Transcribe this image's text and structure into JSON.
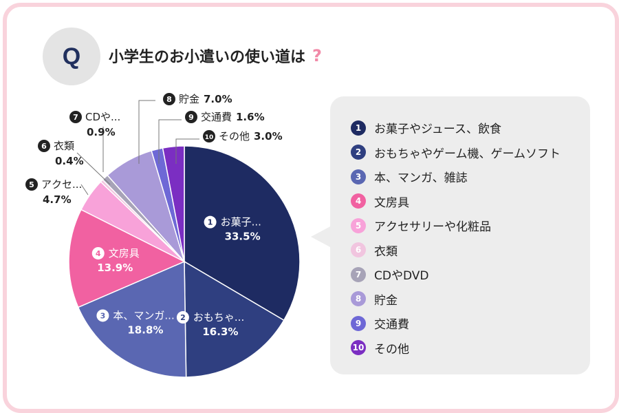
{
  "header": {
    "badge": "Q",
    "title": "小学生のお小遣いの使い道は",
    "question_mark": "?"
  },
  "chart_data": {
    "type": "pie",
    "title": "小学生のお小遣いの使い道は",
    "slices": [
      {
        "num": "1",
        "label": "お菓子やジュース、飲食",
        "short": "お菓子...",
        "value": 33.5,
        "display": "33.5%",
        "color": "#1e2b62",
        "text_color": "#ffffff"
      },
      {
        "num": "2",
        "label": "おもちゃやゲーム機、ゲームソフト",
        "short": "おもちゃ...",
        "value": 16.3,
        "display": "16.3%",
        "color": "#2f3f80",
        "text_color": "#ffffff"
      },
      {
        "num": "3",
        "label": "本、マンガ、雑誌",
        "short": "本、マンガ...",
        "value": 18.8,
        "display": "18.8%",
        "color": "#5a67b2",
        "text_color": "#ffffff"
      },
      {
        "num": "4",
        "label": "文房具",
        "short": "文房具",
        "value": 13.9,
        "display": "13.9%",
        "color": "#f161a1",
        "text_color": "#ffffff"
      },
      {
        "num": "5",
        "label": "アクセサリーや化粧品",
        "short": "アクセ...",
        "value": 4.7,
        "display": "4.7%",
        "color": "#f8a2d9",
        "text_color": "#222222"
      },
      {
        "num": "6",
        "label": "衣類",
        "short": "衣類",
        "value": 0.4,
        "display": "0.4%",
        "color": "#f1c5df",
        "text_color": "#222222"
      },
      {
        "num": "7",
        "label": "CDやDVD",
        "short": "CDや...",
        "value": 0.9,
        "display": "0.9%",
        "color": "#a7a3b7",
        "text_color": "#222222"
      },
      {
        "num": "8",
        "label": "貯金",
        "short": "貯金",
        "value": 7.0,
        "display": "7.0%",
        "color": "#a99ad8",
        "text_color": "#222222"
      },
      {
        "num": "9",
        "label": "交通費",
        "short": "交通費",
        "value": 1.6,
        "display": "1.6%",
        "color": "#6e68d6",
        "text_color": "#222222"
      },
      {
        "num": "10",
        "label": "その他",
        "short": "その他",
        "value": 3.0,
        "display": "3.0%",
        "color": "#7b2ec2",
        "text_color": "#222222"
      }
    ]
  }
}
